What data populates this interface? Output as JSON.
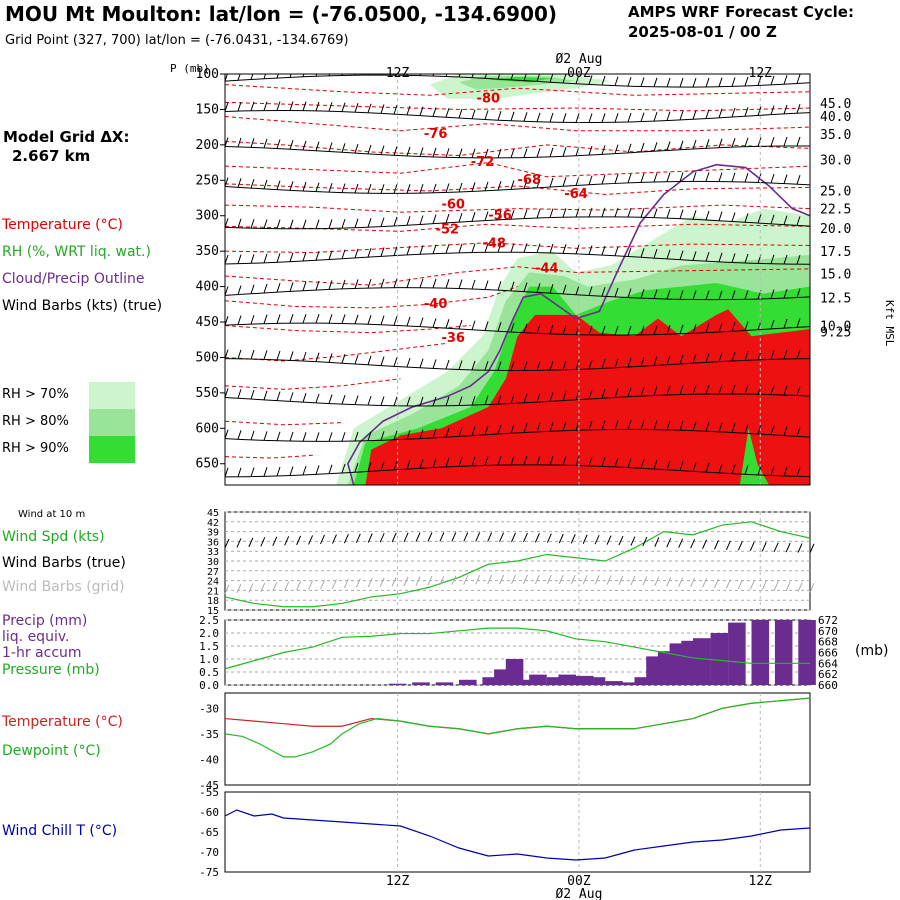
{
  "header": {
    "title": "MOU Mt Moulton:  lat/lon = (-76.0500, -134.6900)",
    "subtitle": "Grid Point (327, 700) lat/lon = (-76.0431, -134.6769)",
    "cycle_line1": "AMPS WRF Forecast Cycle:",
    "cycle_line2": "2025-08-01 / 00  Z"
  },
  "model": {
    "grid_dx_label": "Model Grid ΔX:",
    "grid_dx_value": "2.667 km"
  },
  "colors": {
    "temperature": "#e00000",
    "rh_legend": "#2ca82c",
    "cloud": "#6a2c91",
    "wind": "#000000",
    "wind_grid": "#aaaaaa",
    "wind_chill": "#0000aa",
    "precip_bar": "#6a2c91",
    "pressure_line": "#22bb22",
    "rh70": "#cdf5cd",
    "rh80": "#9ae49a",
    "rh90": "#33dd33",
    "fill_red": "#ee1111"
  },
  "legend": {
    "temperature": "Temperature (°C)",
    "rh": "RH (%, WRT liq. wat.)",
    "cloud": "Cloud/Precip Outline",
    "wind": "Wind Barbs (kts) (true)",
    "rh_levels": [
      "RH > 70%",
      "RH > 80%",
      "RH > 90%"
    ]
  },
  "time_axis": {
    "labels": [
      "12Z",
      "00Z",
      "12Z"
    ],
    "date_label": "Ø2 Aug"
  },
  "chart_data": [
    {
      "type": "area",
      "name": "cross-section",
      "ylabel": "P (mb)",
      "y_ticks": [
        100,
        150,
        200,
        250,
        300,
        350,
        400,
        450,
        500,
        550,
        600,
        650
      ],
      "ylim": [
        100,
        680
      ],
      "y_right_label": "Kft MSL",
      "y_right_ticks": [
        "45.0",
        "40.0",
        "35.0",
        "30.0",
        "25.0",
        "22.5",
        "20.0",
        "17.5",
        "15.0",
        "12.5",
        "10.0",
        "9.25"
      ],
      "y_right_values": [
        142,
        161,
        186,
        222,
        266,
        291,
        319,
        351,
        383,
        417,
        456,
        465
      ],
      "temp_contour_labels": [
        {
          "label": "-80",
          "x": 0.43,
          "p": 140
        },
        {
          "label": "-76",
          "x": 0.34,
          "p": 190
        },
        {
          "label": "-72",
          "x": 0.42,
          "p": 230
        },
        {
          "label": "-68",
          "x": 0.5,
          "p": 255
        },
        {
          "label": "-64",
          "x": 0.58,
          "p": 275
        },
        {
          "label": "-60",
          "x": 0.37,
          "p": 290
        },
        {
          "label": "-56",
          "x": 0.45,
          "p": 305
        },
        {
          "label": "-52",
          "x": 0.36,
          "p": 325
        },
        {
          "label": "-48",
          "x": 0.44,
          "p": 345
        },
        {
          "label": "-44",
          "x": 0.53,
          "p": 380
        },
        {
          "label": "-40",
          "x": 0.34,
          "p": 430
        },
        {
          "label": "-36",
          "x": 0.37,
          "p": 478
        }
      ],
      "warm_region": [
        [
          0.24,
          680
        ],
        [
          0.25,
          630
        ],
        [
          0.3,
          610
        ],
        [
          0.37,
          600
        ],
        [
          0.45,
          570
        ],
        [
          0.48,
          530
        ],
        [
          0.5,
          470
        ],
        [
          0.53,
          440
        ],
        [
          0.6,
          440
        ],
        [
          0.64,
          465
        ],
        [
          0.7,
          470
        ],
        [
          0.74,
          445
        ],
        [
          0.78,
          470
        ],
        [
          0.84,
          440
        ],
        [
          0.86,
          432
        ],
        [
          0.9,
          470
        ],
        [
          1.0,
          460
        ],
        [
          1.0,
          680
        ]
      ],
      "cloud_outline": [
        [
          0.22,
          680
        ],
        [
          0.21,
          650
        ],
        [
          0.23,
          620
        ],
        [
          0.27,
          590
        ],
        [
          0.32,
          570
        ],
        [
          0.38,
          555
        ],
        [
          0.42,
          540
        ],
        [
          0.45,
          520
        ],
        [
          0.47,
          490
        ],
        [
          0.49,
          450
        ],
        [
          0.51,
          415
        ],
        [
          0.54,
          410
        ],
        [
          0.6,
          445
        ],
        [
          0.64,
          435
        ],
        [
          0.67,
          380
        ],
        [
          0.71,
          310
        ],
        [
          0.75,
          270
        ],
        [
          0.8,
          238
        ],
        [
          0.84,
          228
        ],
        [
          0.89,
          232
        ],
        [
          0.93,
          258
        ],
        [
          0.97,
          290
        ],
        [
          1.0,
          300
        ]
      ]
    },
    {
      "type": "line",
      "name": "wind-10m",
      "title": "Wind at 10 m",
      "series": [
        {
          "name": "Wind Spd (kts)",
          "color": "#22bb22",
          "x": [
            0,
            0.05,
            0.1,
            0.15,
            0.2,
            0.25,
            0.3,
            0.35,
            0.4,
            0.45,
            0.5,
            0.55,
            0.6,
            0.65,
            0.7,
            0.75,
            0.8,
            0.85,
            0.9,
            0.95,
            1.0
          ],
          "values": [
            19,
            17,
            16,
            16,
            17,
            19,
            20,
            22,
            25,
            29,
            30,
            32,
            31,
            30,
            34,
            39,
            38,
            41,
            42,
            39,
            37
          ]
        }
      ],
      "y_ticks": [
        15,
        18,
        21,
        24,
        27,
        30,
        33,
        36,
        39,
        42,
        45
      ],
      "ylim": [
        15,
        45
      ],
      "legend": [
        "Wind Spd (kts)",
        "Wind Barbs (true)",
        "Wind Barbs (grid)"
      ]
    },
    {
      "type": "bar",
      "name": "precip",
      "series": [
        {
          "name": "Precip (mm) liq. equiv. 1-hr accum",
          "color": "#6a2c91",
          "x": [
            0.28,
            0.32,
            0.36,
            0.4,
            0.44,
            0.46,
            0.48,
            0.5,
            0.52,
            0.55,
            0.57,
            0.6,
            0.62,
            0.65,
            0.67,
            0.7,
            0.72,
            0.74,
            0.76,
            0.78,
            0.8,
            0.83,
            0.86,
            0.9,
            0.94,
            0.98
          ],
          "values": [
            0.05,
            0.1,
            0.1,
            0.2,
            0.3,
            0.6,
            1.0,
            0.2,
            0.4,
            0.3,
            0.4,
            0.35,
            0.3,
            0.15,
            0.1,
            0.3,
            1.1,
            1.3,
            1.6,
            1.7,
            1.8,
            2.0,
            2.4,
            2.5,
            2.5,
            2.5
          ]
        },
        {
          "name": "Pressure (mb)",
          "color": "#22bb22",
          "axis": "right",
          "x": [
            0,
            0.05,
            0.1,
            0.15,
            0.2,
            0.25,
            0.3,
            0.35,
            0.4,
            0.45,
            0.5,
            0.55,
            0.6,
            0.65,
            0.7,
            0.75,
            0.8,
            0.85,
            0.9,
            0.95,
            1.0
          ],
          "values": [
            663,
            664.5,
            666,
            667,
            668.8,
            669,
            669.5,
            669.5,
            670,
            670.5,
            670.5,
            670,
            668.5,
            668,
            667,
            666,
            665,
            664.5,
            664,
            664,
            664
          ]
        }
      ],
      "y_ticks": [
        0.0,
        0.5,
        1.0,
        1.5,
        2.0,
        2.5
      ],
      "ylim": [
        0,
        2.5
      ],
      "y_right_ticks": [
        660,
        662,
        664,
        666,
        668,
        670,
        672
      ],
      "y_right_lim": [
        660,
        672
      ],
      "y_right_unit": "(mb)",
      "legend": [
        "Precip (mm)",
        "liq. equiv.",
        "1-hr accum",
        "Pressure (mb)"
      ]
    },
    {
      "type": "line",
      "name": "temperature-dewpoint",
      "series": [
        {
          "name": "Temperature (°C)",
          "color": "#cc2222",
          "x": [
            0,
            0.05,
            0.1,
            0.15,
            0.2,
            0.25,
            0.3,
            0.35,
            0.4,
            0.45,
            0.5,
            0.55,
            0.6,
            0.65,
            0.7,
            0.75,
            0.8,
            0.85,
            0.9,
            0.95,
            1.0
          ],
          "values": [
            -32,
            -32.5,
            -33,
            -33.5,
            -33.5,
            -32,
            -32.5,
            -33.5,
            -34,
            -35,
            -34,
            -33.5,
            -34,
            -34,
            -34,
            -33,
            -32,
            -30,
            -29,
            -28.5,
            -28
          ]
        },
        {
          "name": "Dewpoint (°C)",
          "color": "#22bb22",
          "x": [
            0,
            0.03,
            0.06,
            0.1,
            0.12,
            0.15,
            0.18,
            0.2,
            0.23,
            0.26,
            0.3,
            0.35,
            0.4,
            0.45,
            0.5,
            0.55,
            0.6,
            0.65,
            0.7,
            0.75,
            0.8,
            0.85,
            0.9,
            0.95,
            1.0
          ],
          "values": [
            -35,
            -35.5,
            -37,
            -39.5,
            -39.5,
            -38.5,
            -37,
            -35,
            -33,
            -32,
            -32.5,
            -33.5,
            -34,
            -35,
            -34,
            -33.5,
            -34,
            -34,
            -34,
            -33,
            -32,
            -30,
            -29,
            -28.5,
            -28
          ]
        }
      ],
      "y_ticks": [
        -30,
        -35,
        -40,
        -45
      ],
      "ylim": [
        -45,
        -27
      ],
      "legend": [
        "Temperature (°C)",
        "Dewpoint (°C)"
      ]
    },
    {
      "type": "line",
      "name": "wind-chill",
      "series": [
        {
          "name": "Wind Chill T (°C)",
          "color": "#0000aa",
          "x": [
            0,
            0.02,
            0.05,
            0.08,
            0.1,
            0.15,
            0.2,
            0.25,
            0.3,
            0.35,
            0.4,
            0.45,
            0.5,
            0.55,
            0.6,
            0.65,
            0.7,
            0.75,
            0.8,
            0.85,
            0.9,
            0.95,
            1.0
          ],
          "values": [
            -61,
            -59.5,
            -61,
            -60.5,
            -61.5,
            -62,
            -62.5,
            -63,
            -63.5,
            -66,
            -69,
            -71,
            -70.5,
            -71.5,
            -72,
            -71.5,
            -69.5,
            -68.5,
            -67.5,
            -67,
            -66,
            -64.5,
            -64
          ]
        }
      ],
      "y_ticks": [
        -55,
        -60,
        -65,
        -70,
        -75
      ],
      "ylim": [
        -75,
        -55
      ],
      "legend": [
        "Wind Chill T (°C)"
      ]
    }
  ]
}
